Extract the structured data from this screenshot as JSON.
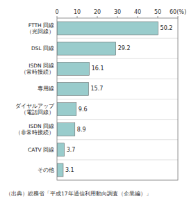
{
  "chart_data": {
    "type": "bar",
    "orientation": "horizontal",
    "categories": [
      "その他",
      "CATV 回線",
      "ISDN 回線\n（非常時接続）",
      "ダイヤルアップ\n（電話回線）",
      "専用線",
      "ISDN 回線\n（常時接続）",
      "DSL 回線",
      "FTTH 回線\n（光回線）"
    ],
    "values": [
      3.1,
      3.7,
      8.9,
      9.6,
      15.7,
      16.1,
      29.2,
      50.2
    ],
    "color": "#99cccc",
    "xlim": [
      0,
      60
    ],
    "xticks": [
      0,
      10,
      20,
      30,
      40,
      50,
      {
        "value": 60,
        "label": "60(%)"
      }
    ],
    "data_labels": true,
    "grid": false,
    "annotations": [
      "（出典）総務省「平成17年通信利用動向調査（企業編）」"
    ]
  }
}
